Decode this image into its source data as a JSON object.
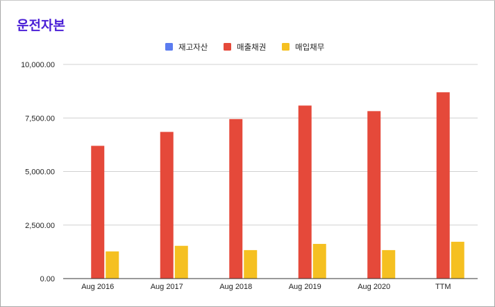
{
  "chart_data": {
    "type": "bar",
    "title": "운전자본",
    "categories": [
      "Aug 2016",
      "Aug 2017",
      "Aug 2018",
      "Aug 2019",
      "Aug 2020",
      "TTM"
    ],
    "series": [
      {
        "name": "재고자산",
        "color": "#5b7cf0",
        "values": [
          0,
          0,
          0,
          0,
          0,
          0
        ]
      },
      {
        "name": "매출채권",
        "color": "#e5493a",
        "values": [
          6200,
          6850,
          7450,
          8080,
          7820,
          8700
        ]
      },
      {
        "name": "매입채무",
        "color": "#f5c021",
        "values": [
          1270,
          1530,
          1330,
          1620,
          1330,
          1720
        ]
      }
    ],
    "yticks": [
      "0.00",
      "2,500.00",
      "5,000.00",
      "7,500.00",
      "10,000.00"
    ],
    "ylim": [
      0,
      10000
    ],
    "grid": true,
    "legend": "top-center"
  }
}
